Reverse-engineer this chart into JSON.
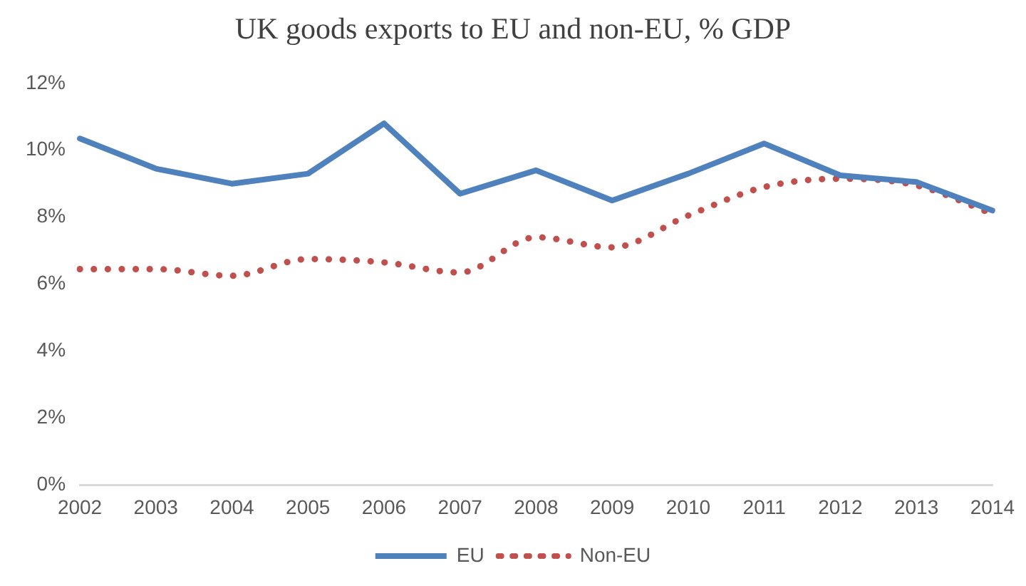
{
  "chart_data": {
    "type": "line",
    "title": "UK goods exports to EU and non-EU, % GDP",
    "categories": [
      "2002",
      "2003",
      "2004",
      "2005",
      "2006",
      "2007",
      "2008",
      "2009",
      "2010",
      "2011",
      "2012",
      "2013",
      "2014"
    ],
    "series": [
      {
        "name": "EU",
        "color": "#4f81bd",
        "line_style": "solid",
        "values": [
          10.35,
          9.45,
          9.0,
          9.3,
          10.8,
          8.7,
          9.4,
          8.5,
          9.3,
          10.2,
          9.25,
          9.05,
          8.2
        ]
      },
      {
        "name": "Non-EU",
        "color": "#c0504d",
        "line_style": "dotted",
        "values": [
          6.45,
          6.45,
          6.25,
          6.75,
          6.65,
          6.35,
          7.4,
          7.1,
          8.05,
          8.9,
          9.15,
          8.95,
          8.1
        ]
      }
    ],
    "ylim": [
      0,
      12
    ],
    "yticks": [
      {
        "value": 0,
        "label": "0%"
      },
      {
        "value": 2,
        "label": "2%"
      },
      {
        "value": 4,
        "label": "4%"
      },
      {
        "value": 6,
        "label": "6%"
      },
      {
        "value": 8,
        "label": "8%"
      },
      {
        "value": 10,
        "label": "10%"
      },
      {
        "value": 12,
        "label": "12%"
      }
    ],
    "grid": false,
    "legend": "bottom",
    "marker": "none"
  }
}
